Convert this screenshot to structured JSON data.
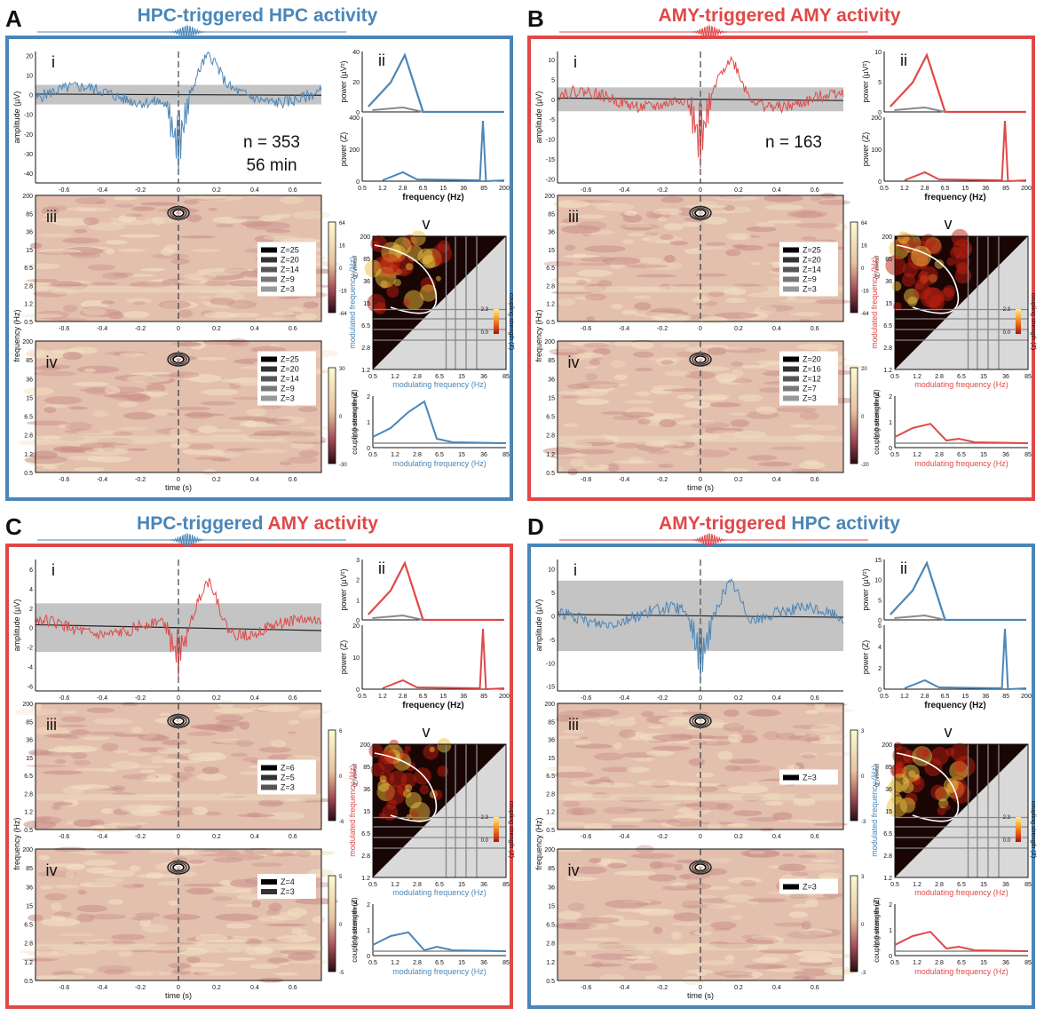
{
  "colors": {
    "hpc": "#4a86b8",
    "amy": "#e04848",
    "sem_gray": "#c4c4c4",
    "mean": "#222222",
    "surrogate": "#8a8a8a",
    "triangle_gray": "#d9d9d9"
  },
  "labels": {
    "amplitude": "amplitude (µV)",
    "power_uv": "power (µV²)",
    "power_z": "power (Z)",
    "frequency_hz": "frequency (Hz)",
    "time_s": "time (s)",
    "cbar_power": "power (Z)",
    "cbar_phase": "phase clustering (Z)",
    "modulated": "modulated frequency (Hz)",
    "modulating": "modulating frequency (Hz)",
    "coupling": "coupling strength (Z)",
    "sub_i": "i",
    "sub_ii": "ii",
    "sub_iii": "iii",
    "sub_iv": "iv",
    "sub_v": "v"
  },
  "ticks": {
    "time": [
      "-0.6",
      "-0.4",
      "-0.2",
      "0",
      "0.2",
      "0.4",
      "0.6"
    ],
    "freq_y": [
      "200",
      "85",
      "36",
      "15",
      "6.5",
      "2.8",
      "1.2",
      "0.5"
    ],
    "freq_x": [
      "0.5",
      "1.2",
      "2.8",
      "6.5",
      "15",
      "36",
      "85",
      "200"
    ],
    "mod_x": [
      "0.5",
      "1.2",
      "2.8",
      "6.5",
      "15",
      "36",
      "85"
    ],
    "pac_y": [
      "200",
      "85",
      "36",
      "15",
      "6.5",
      "2.8",
      "1.2"
    ],
    "pac_cbar": [
      "2.3",
      "0.0"
    ]
  },
  "panels": [
    {
      "letter": "A",
      "title_a": "HPC-triggered ",
      "title_b": "HPC activity",
      "title_a_color": "#4a86b8",
      "title_b_color": "#4a86b8",
      "frame": "#4a86b8",
      "trace_color": "#4a86b8",
      "modulated_color": "#4a86b8",
      "modulating_color": "#4a86b8",
      "amp_ticks": [
        "20",
        "10",
        "0",
        "-10",
        "-20",
        "-30",
        "-40"
      ],
      "amp_range": [
        -45,
        22
      ],
      "sem": 5,
      "n": "n = 353",
      "dur": "56 min",
      "pow_uv_ticks": [
        "40",
        "20",
        "0"
      ],
      "pow_z_ticks": [
        "400",
        "200",
        "0"
      ],
      "iii_legend": [
        "Z=25",
        "Z=20",
        "Z=14",
        "Z=9",
        "Z=3"
      ],
      "iii_cbar": [
        "64",
        "16",
        "0",
        "-16",
        "-64"
      ],
      "iv_legend": [
        "Z=25",
        "Z=20",
        "Z=14",
        "Z=9",
        "Z=3"
      ],
      "iv_cbar": [
        "30",
        "0",
        "-30"
      ],
      "cs_ticks": [
        "2",
        "1",
        "0"
      ]
    },
    {
      "letter": "B",
      "title_a": "AMY-triggered ",
      "title_b": "AMY activity",
      "title_a_color": "#e04848",
      "title_b_color": "#e04848",
      "frame": "#e04848",
      "trace_color": "#e04848",
      "modulated_color": "#e04848",
      "modulating_color": "#e04848",
      "amp_ticks": [
        "10",
        "5",
        "0",
        "-5",
        "-10",
        "-15",
        "-20"
      ],
      "amp_range": [
        -21,
        12
      ],
      "sem": 3,
      "n": "n = 163",
      "dur": "",
      "pow_uv_ticks": [
        "10",
        "5",
        "0"
      ],
      "pow_z_ticks": [
        "200",
        "100",
        "0"
      ],
      "iii_legend": [
        "Z=25",
        "Z=20",
        "Z=14",
        "Z=9",
        "Z=3"
      ],
      "iii_cbar": [
        "64",
        "16",
        "0",
        "-16",
        "-64"
      ],
      "iv_legend": [
        "Z=20",
        "Z=16",
        "Z=12",
        "Z=7",
        "Z=3"
      ],
      "iv_cbar": [
        "20",
        "0",
        "-20"
      ],
      "cs_ticks": [
        "2",
        "1",
        "0"
      ]
    },
    {
      "letter": "C",
      "title_a": "HPC-triggered ",
      "title_b": "AMY activity",
      "title_a_color": "#4a86b8",
      "title_b_color": "#e04848",
      "frame": "#e04848",
      "trace_color": "#e04848",
      "modulated_color": "#e04848",
      "modulating_color": "#4a86b8",
      "amp_ticks": [
        "6",
        "4",
        "2",
        "0",
        "-2",
        "-4",
        "-6"
      ],
      "amp_range": [
        -6.5,
        7
      ],
      "sem": 2.5,
      "n": "",
      "dur": "",
      "pow_uv_ticks": [
        "3",
        "2",
        "1",
        "0"
      ],
      "pow_z_ticks": [
        "20",
        "10",
        "0"
      ],
      "iii_legend": [
        "Z=6",
        "Z=5",
        "Z=3"
      ],
      "iii_cbar": [
        "6",
        "0",
        "-6"
      ],
      "iv_legend": [
        "Z=4",
        "Z=3"
      ],
      "iv_cbar": [
        "5",
        "0",
        "-5"
      ],
      "cs_ticks": [
        "2",
        "1",
        "0"
      ]
    },
    {
      "letter": "D",
      "title_a": "AMY-triggered ",
      "title_b": "HPC activity",
      "title_a_color": "#e04848",
      "title_b_color": "#4a86b8",
      "frame": "#4a86b8",
      "trace_color": "#4a86b8",
      "modulated_color": "#4a86b8",
      "modulating_color": "#e04848",
      "amp_ticks": [
        "10",
        "5",
        "0",
        "-5",
        "-10",
        "-15"
      ],
      "amp_range": [
        -16,
        12
      ],
      "sem": 7.5,
      "n": "",
      "dur": "",
      "pow_uv_ticks": [
        "15",
        "10",
        "5",
        "0"
      ],
      "pow_z_ticks": [
        "6",
        "4",
        "2",
        "0"
      ],
      "iii_legend": [
        "Z=3"
      ],
      "iii_cbar": [
        "3",
        "0",
        "-3"
      ],
      "iv_legend": [
        "Z=3"
      ],
      "iv_cbar": [
        "3",
        "0",
        "-3"
      ],
      "cs_ticks": [
        "2",
        "1",
        "0"
      ]
    }
  ]
}
